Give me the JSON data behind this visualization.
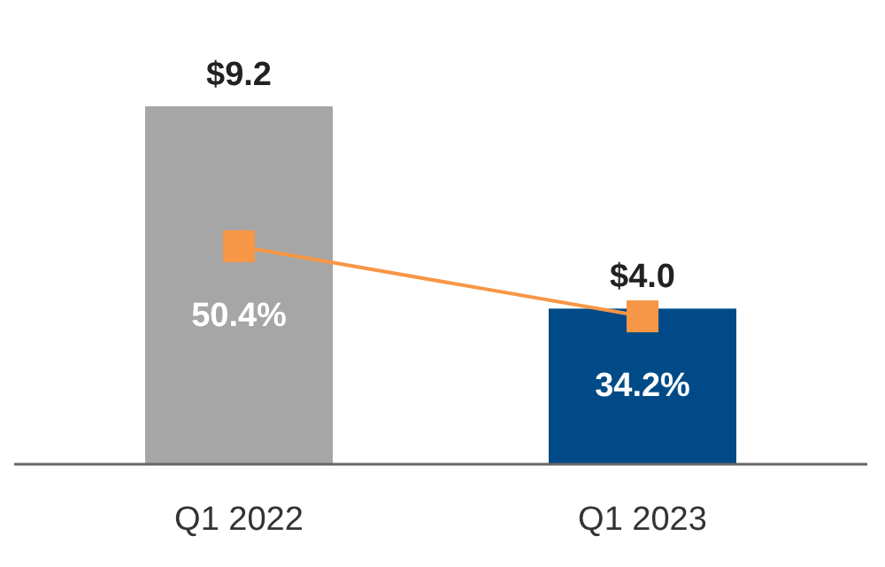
{
  "chart_data": {
    "type": "bar",
    "categories": [
      "Q1 2022",
      "Q1 2023"
    ],
    "tick_labels": "x",
    "series": [
      {
        "colors": [
          "#a6a6a6",
          "#004b87"
        ],
        "values": [
          9.2,
          4.0
        ],
        "value_labels": [
          "$9.2",
          "$4.0"
        ]
      },
      {
        "type": "line",
        "axis": "y2",
        "color": "#f79646",
        "marker": "square",
        "values": [
          50.4,
          34.2
        ],
        "value_labels": [
          "50.4%",
          "34.2%"
        ]
      }
    ]
  }
}
